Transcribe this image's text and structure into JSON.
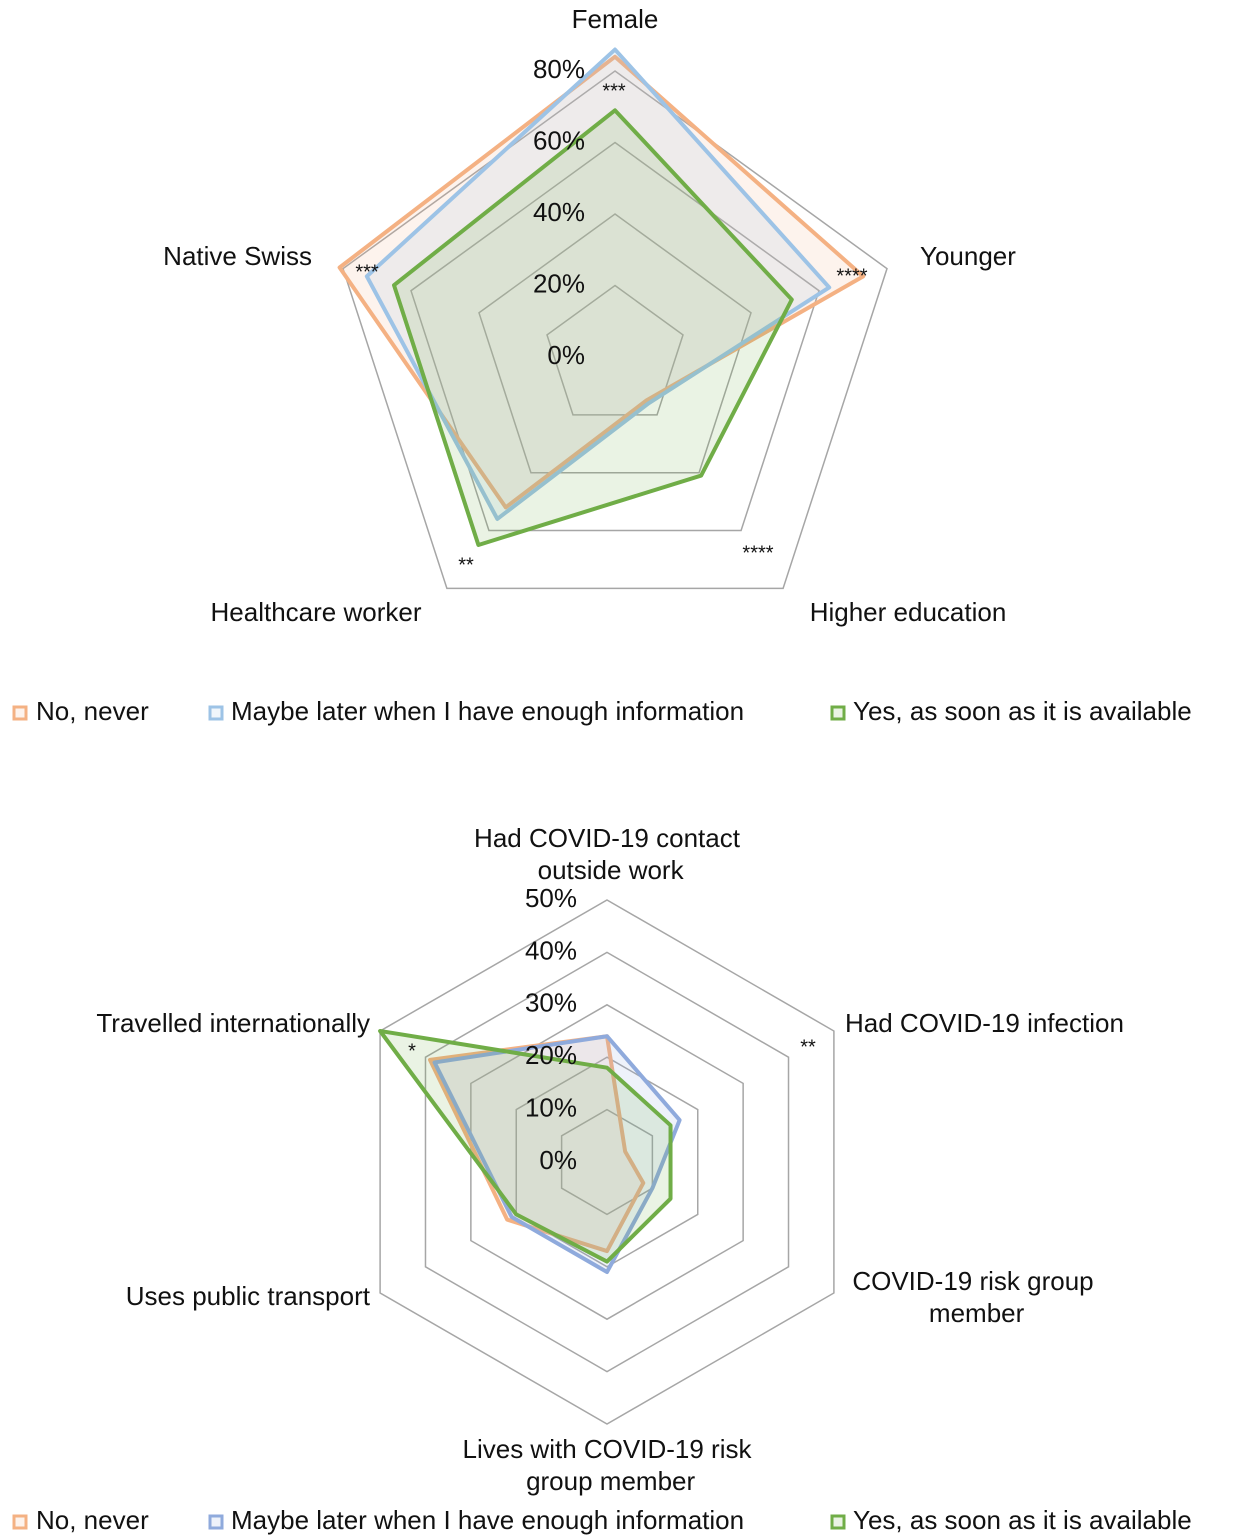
{
  "chart_data": [
    {
      "type": "radar",
      "categories": [
        "Female",
        "Younger",
        "Higher education",
        "Healthcare worker",
        "Native Swiss"
      ],
      "ylim": [
        0,
        80
      ],
      "yticks": [
        {
          "value": 0,
          "label": "0%"
        },
        {
          "value": 20,
          "label": "20%"
        },
        {
          "value": 40,
          "label": "40%"
        },
        {
          "value": 60,
          "label": "60%"
        },
        {
          "value": 80,
          "label": "80%"
        }
      ],
      "annotations": [
        "***",
        "****",
        "****",
        "**",
        "***"
      ],
      "series": [
        {
          "name": "No, never",
          "color": "#f4b183",
          "values": [
            84,
            73,
            15,
            52,
            81
          ]
        },
        {
          "name": "Maybe later when I have enough information",
          "color": "#9dc3e6",
          "values": [
            86,
            63,
            16,
            56,
            73
          ]
        },
        {
          "name": "Yes, as soon as it is available",
          "color": "#70ad47",
          "values": [
            69,
            52,
            41,
            65,
            65
          ]
        }
      ]
    },
    {
      "type": "radar",
      "categories": [
        "Had COVID-19 contact outside work",
        "Had COVID-19 infection",
        "COVID-19 risk group member",
        "Lives with COVID-19 risk group member",
        "Uses public transport",
        "Travelled internationally"
      ],
      "ylim": [
        0,
        50
      ],
      "yticks": [
        {
          "value": 0,
          "label": "0%"
        },
        {
          "value": 10,
          "label": "10%"
        },
        {
          "value": 20,
          "label": "20%"
        },
        {
          "value": 30,
          "label": "30%"
        },
        {
          "value": 40,
          "label": "40%"
        },
        {
          "value": 50,
          "label": "50%"
        }
      ],
      "annotations": [
        null,
        "**",
        null,
        null,
        null,
        "*"
      ],
      "series": [
        {
          "name": "No, never",
          "color": "#f4b183",
          "values": [
            24,
            4,
            8,
            17,
            22,
            39
          ]
        },
        {
          "name": "Maybe later when I have enough information",
          "color": "#8faadc",
          "values": [
            24,
            16,
            10,
            21,
            21,
            38
          ]
        },
        {
          "name": "Yes, as soon as it is available",
          "color": "#70ad47",
          "values": [
            18,
            14,
            14,
            19,
            20,
            50
          ]
        }
      ]
    }
  ]
}
